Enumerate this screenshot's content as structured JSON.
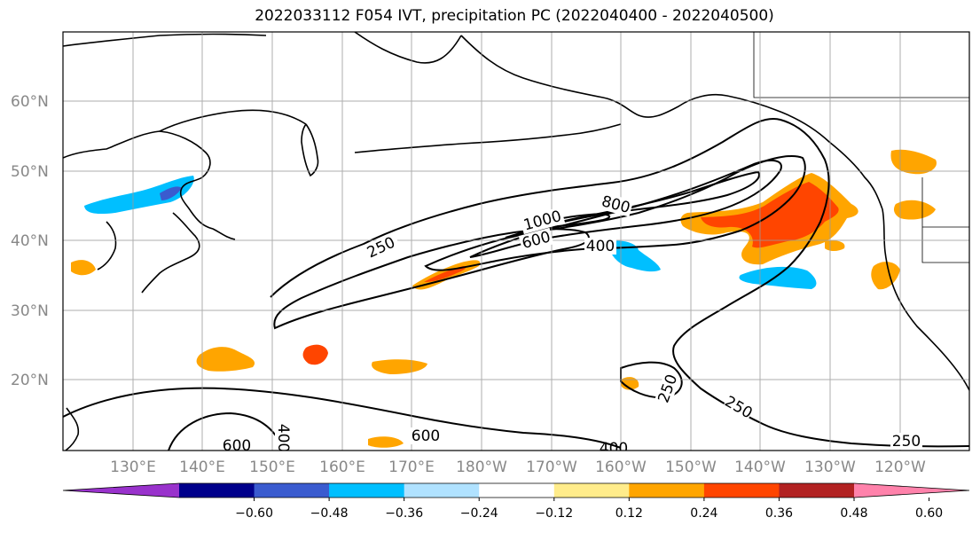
{
  "title": "2022033112 F054 IVT, precipitation PC (2022040400 - 2022040500)",
  "map": {
    "lat_labels": [
      "60°N",
      "50°N",
      "40°N",
      "30°N",
      "20°N"
    ],
    "lon_labels": [
      "130°E",
      "140°E",
      "150°E",
      "160°E",
      "170°E",
      "180°W",
      "170°W",
      "160°W",
      "150°W",
      "140°W",
      "130°W",
      "120°W"
    ],
    "contour_labels": [
      "250",
      "1000",
      "800",
      "600",
      "400",
      "250",
      "250",
      "600",
      "600",
      "400",
      "250",
      "400"
    ],
    "land_color": "#ffffff",
    "ocean_color": "#ffffff"
  },
  "colorbar": {
    "colors": [
      "#9932cc",
      "#00008b",
      "#3a5bcf",
      "#00bfff",
      "#b0e2ff",
      "#ffffff",
      "#ffec8b",
      "#ffa500",
      "#ff4500",
      "#b22222",
      "#ff82ab"
    ],
    "tick_labels": [
      "−0.60",
      "−0.48",
      "−0.36",
      "−0.24",
      "−0.12",
      "0.12",
      "0.24",
      "0.36",
      "0.48",
      "0.60"
    ]
  }
}
